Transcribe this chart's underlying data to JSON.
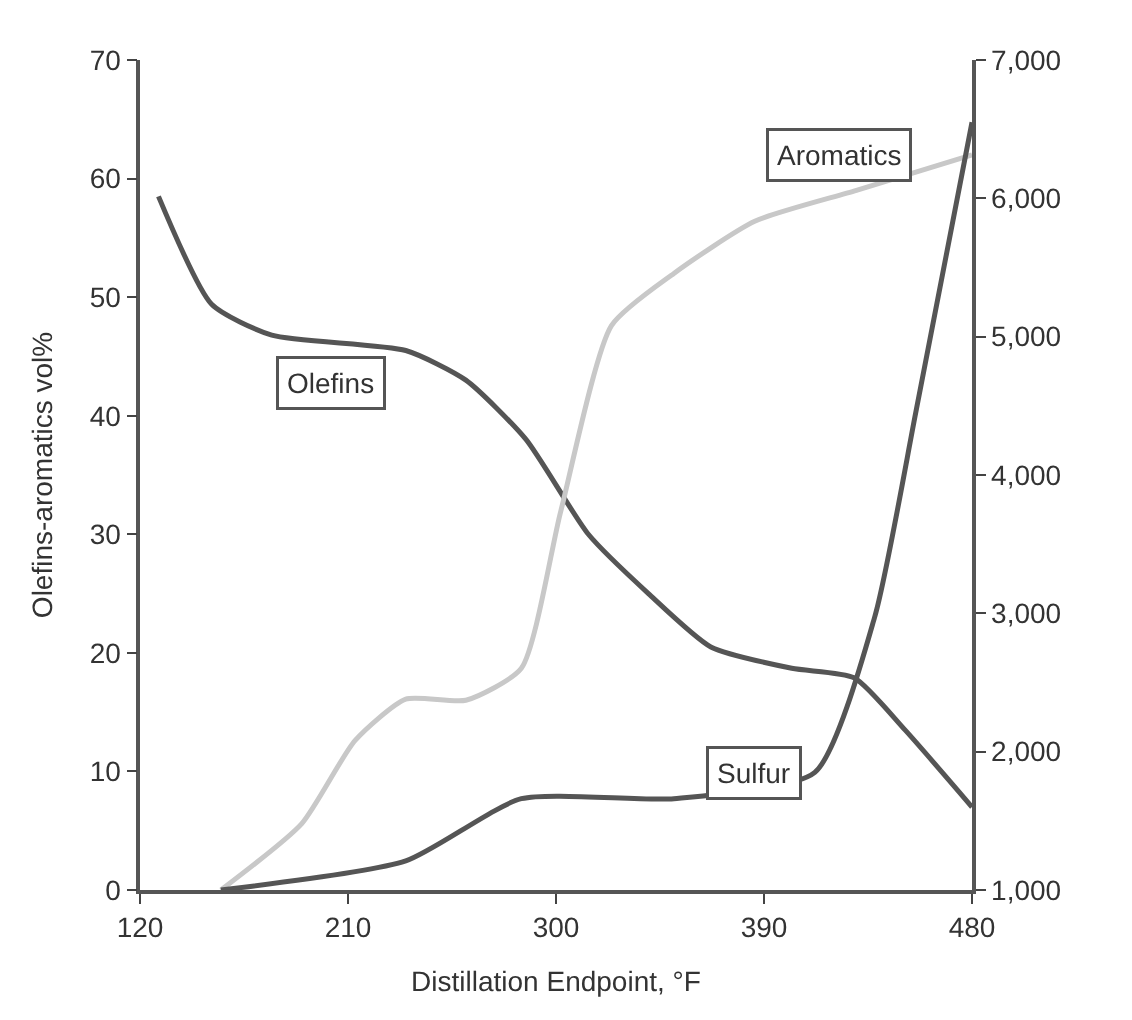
{
  "chart_data": {
    "type": "line",
    "xlabel": "Distillation Endpoint, °F",
    "ylabel": "Olefins-aromatics vol%",
    "xlim": [
      120,
      480
    ],
    "xticks": [
      120,
      210,
      300,
      390,
      480
    ],
    "ylim": [
      0,
      70
    ],
    "yticks": [
      0,
      10,
      20,
      30,
      40,
      50,
      60,
      70
    ],
    "y2lim": [
      1000,
      7000
    ],
    "y2ticks": [
      {
        "value": 1000,
        "label": "1,000"
      },
      {
        "value": 2000,
        "label": "2,000"
      },
      {
        "value": 3000,
        "label": "3,000"
      },
      {
        "value": 4000,
        "label": "4,000"
      },
      {
        "value": 5000,
        "label": "5,000"
      },
      {
        "value": 6000,
        "label": "6,000"
      },
      {
        "value": 7000,
        "label": "7,000"
      }
    ],
    "legend": false,
    "marker": "none",
    "line_style": "solid",
    "series": [
      {
        "name": "Olefins",
        "color": "#555555",
        "x": [
          128,
          151,
          177,
          235,
          261,
          287,
          314,
          340,
          367,
          402,
          429,
          451,
          480
        ],
        "values": [
          58.5,
          49.4,
          46.8,
          45.5,
          43,
          38,
          30,
          25,
          20.5,
          18.7,
          17.9,
          13.5,
          7
        ]
      },
      {
        "name": "Aromatics",
        "color": "#c8c8c8",
        "x": [
          155,
          190,
          213,
          235,
          261,
          285,
          302,
          324,
          351,
          386,
          430,
          480
        ],
        "values": [
          0,
          5.6,
          12.6,
          16.1,
          16,
          18.7,
          31.9,
          47.6,
          52,
          56.4,
          59,
          62
        ]
      },
      {
        "name": "Sulfur",
        "color": "#555555",
        "axis": "y2",
        "x": [
          155,
          235,
          285,
          351,
          412,
          438,
          456,
          480
        ],
        "values": [
          1000,
          1210,
          1660,
          1660,
          1850,
          2980,
          4480,
          6550
        ]
      }
    ]
  }
}
